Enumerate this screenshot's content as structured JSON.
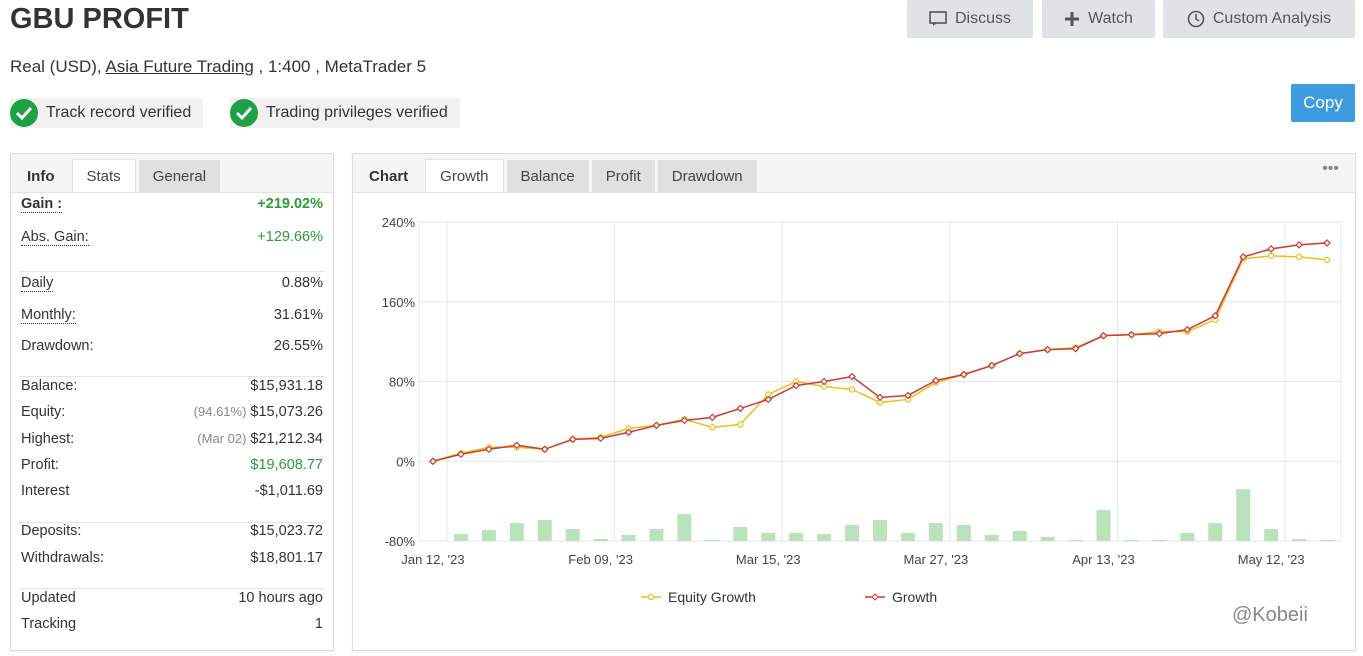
{
  "header": {
    "title": "GBU PROFIT",
    "buttons": [
      "Discuss",
      "Watch",
      "Custom Analysis"
    ],
    "account_type": "Real (USD),",
    "broker": "Asia Future Trading",
    "account_details": ", 1:400 , MetaTrader 5",
    "badges": [
      "Track record verified",
      "Trading privileges verified"
    ],
    "copy_button": "Copy"
  },
  "info_panel": {
    "tabs": [
      "Info",
      "Stats",
      "General"
    ],
    "rows": [
      {
        "label": "Gain :",
        "value": "+219.02%",
        "underline": true,
        "bold": true,
        "color": "#2a9d3a"
      },
      {
        "label": "Abs. Gain:",
        "value": "+129.66%",
        "underline": true,
        "color": "#2a9d3a"
      },
      {
        "label": "Daily",
        "value": "0.88%",
        "underline": true
      },
      {
        "label": "Monthly:",
        "value": "31.61%",
        "underline": true
      },
      {
        "label": "Drawdown:",
        "value": "26.55%"
      },
      {
        "label": "Balance:",
        "value": "$15,931.18"
      },
      {
        "label": "Equity:",
        "note": "(94.61%)",
        "value": "$15,073.26"
      },
      {
        "label": "Highest:",
        "note": "(Mar 02)",
        "value": "$21,212.34"
      },
      {
        "label": "Profit:",
        "value": "$19,608.77",
        "color": "#2a9d3a"
      },
      {
        "label": "Interest",
        "value": "-$1,011.69"
      },
      {
        "label": "Deposits:",
        "value": "$15,023.72"
      },
      {
        "label": "Withdrawals:",
        "value": "$18,801.17"
      },
      {
        "label": "Updated",
        "value": "10 hours ago"
      },
      {
        "label": "Tracking",
        "value": "1"
      }
    ]
  },
  "chart_panel": {
    "tabs": [
      "Chart",
      "Growth",
      "Balance",
      "Profit",
      "Drawdown"
    ],
    "menu": "•••"
  },
  "chart_data": {
    "type": "line",
    "categories": [
      "Jan 12, '23",
      null,
      null,
      null,
      null,
      null,
      "Feb 09, '23",
      null,
      null,
      null,
      null,
      null,
      "Mar 15, '23",
      null,
      null,
      null,
      null,
      null,
      "Mar 27, '23",
      null,
      null,
      null,
      null,
      null,
      "Apr 13, '23",
      null,
      null,
      null,
      null,
      null,
      "May 12, '23",
      null,
      null
    ],
    "series": [
      {
        "name": "Equity Growth",
        "color": "#e8bf1c",
        "values": [
          0,
          8,
          14,
          14,
          12,
          22,
          24,
          33,
          36,
          42,
          34,
          37,
          67,
          80,
          75,
          72,
          59,
          62,
          79,
          87,
          96,
          108,
          112,
          114,
          126,
          127,
          130,
          130,
          142,
          203,
          206,
          205,
          202
        ]
      },
      {
        "name": "Growth",
        "color": "#cc3b33",
        "values": [
          0,
          7,
          12,
          16,
          12,
          22,
          23,
          29,
          36,
          41,
          44,
          53,
          62,
          76,
          80,
          85,
          64,
          66,
          81,
          87,
          96,
          108,
          112,
          113,
          126,
          127,
          128,
          132,
          146,
          205,
          213,
          217,
          219.02
        ]
      }
    ],
    "bars": {
      "color": "#b9e2bd",
      "values": [
        null,
        -73,
        -69,
        -62,
        -59,
        -68,
        -78,
        -74,
        -68,
        -53,
        -79,
        -66,
        -72,
        -72,
        -73,
        -64,
        -59,
        -72,
        -62,
        -64,
        -74,
        -70,
        -76,
        -79,
        -49,
        -79,
        -79,
        -72,
        -62,
        -28,
        -68,
        -78,
        -79
      ]
    },
    "ylim": [
      -80,
      240
    ],
    "yticks": [
      {
        "value": -80,
        "label": "-80%"
      },
      {
        "value": 0,
        "label": "0%"
      },
      {
        "value": 80,
        "label": "80%"
      },
      {
        "value": 160,
        "label": "160%"
      },
      {
        "value": 240,
        "label": "240%"
      }
    ],
    "grid": true
  },
  "watermark": "@Kobeii"
}
